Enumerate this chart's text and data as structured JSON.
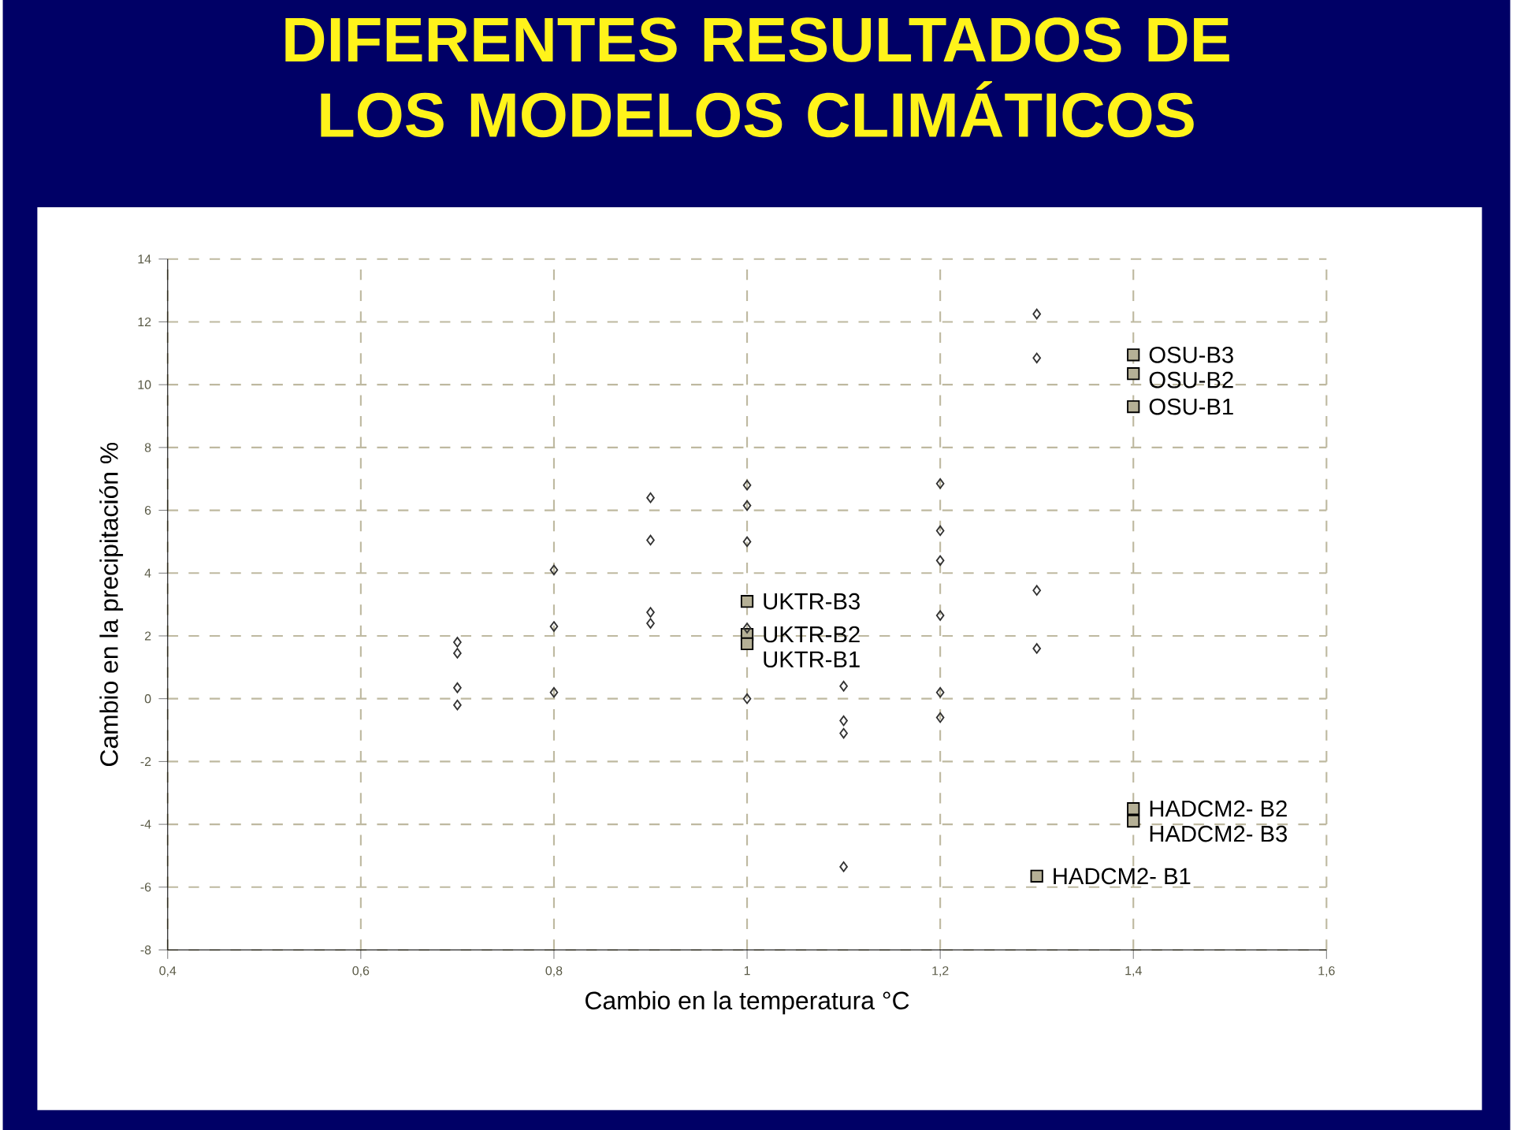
{
  "chart_data": {
    "type": "scatter",
    "title": "DIFERENTES RESULTADOS DE LOS MODELOS CLIMÁTICOS",
    "xlabel": "Cambio en la temperatura °C",
    "ylabel": "Cambio en la precipitación %",
    "xlim": [
      0.4,
      1.6
    ],
    "ylim": [
      -8,
      14
    ],
    "xticks": [
      {
        "value": 0.4,
        "label": "0,4"
      },
      {
        "value": 0.6,
        "label": "0,6"
      },
      {
        "value": 0.8,
        "label": "0,8"
      },
      1,
      {
        "value": 1.2,
        "label": "1,2"
      },
      {
        "value": 1.4,
        "label": "1,4"
      },
      {
        "value": 1.6,
        "label": "1,6"
      }
    ],
    "yticks": [
      -8,
      -6,
      -4,
      -2,
      0,
      2,
      4,
      6,
      8,
      10,
      12,
      14
    ],
    "grid": true,
    "series": [
      {
        "color": "#333333",
        "marker": "diamond",
        "x": [
          0.7,
          0.7,
          0.7,
          0.7,
          0.8,
          0.8,
          0.8,
          0.9,
          0.9,
          0.9,
          0.9,
          1.0,
          1.0,
          1.0,
          1.0,
          1.0,
          1.1,
          1.1,
          1.1,
          1.1,
          1.2,
          1.2,
          1.2,
          1.2,
          1.2,
          1.2,
          1.3,
          1.3,
          1.3,
          1.3
        ],
        "values": [
          1.8,
          1.45,
          0.35,
          -0.2,
          4.1,
          2.3,
          0.2,
          6.4,
          5.05,
          2.75,
          2.4,
          6.8,
          6.15,
          5.0,
          2.25,
          0.0,
          0.4,
          -0.7,
          -1.1,
          -5.35,
          6.85,
          5.35,
          4.4,
          2.65,
          0.2,
          -0.6,
          12.25,
          10.85,
          3.45,
          1.6
        ]
      },
      {
        "color": "#b5b096",
        "marker": "square",
        "x": [
          1.0,
          1.0,
          1.0,
          1.4,
          1.4,
          1.4,
          1.4,
          1.4,
          1.3
        ],
        "values": [
          3.1,
          2.05,
          1.75,
          10.95,
          10.35,
          9.3,
          -3.5,
          -3.9,
          -5.65
        ]
      }
    ],
    "annotations": [
      {
        "text": "UKTR-B3",
        "x": 1.0,
        "y": 3.1
      },
      {
        "text": "UKTR-B2",
        "x": 1.0,
        "y": 2.05
      },
      {
        "text": "UKTR-B1",
        "x": 1.0,
        "y": 1.75
      },
      {
        "text": "OSU-B3",
        "x": 1.4,
        "y": 10.95
      },
      {
        "text": "OSU-B2",
        "x": 1.4,
        "y": 10.35
      },
      {
        "text": "OSU-B1",
        "x": 1.4,
        "y": 9.3
      },
      {
        "text": "HADCM2- B2",
        "x": 1.4,
        "y": -3.5
      },
      {
        "text": "HADCM2- B3",
        "x": 1.4,
        "y": -3.9
      },
      {
        "text": "HADCM2- B1",
        "x": 1.3,
        "y": -5.65
      }
    ]
  }
}
